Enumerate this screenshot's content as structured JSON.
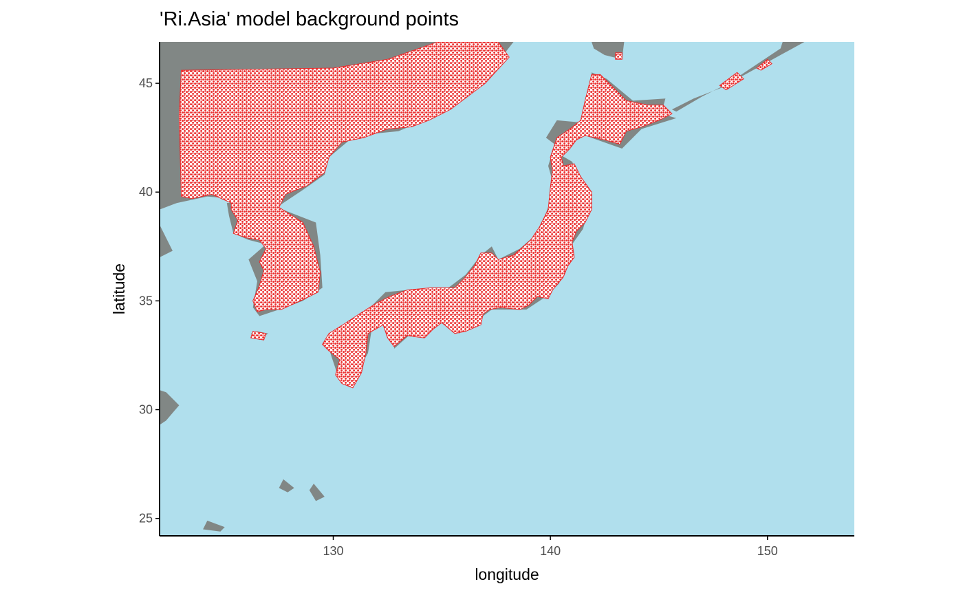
{
  "title": "'Ri.Asia' model background points",
  "colors": {
    "ocean": "#b0dfed",
    "land": "#818785",
    "background_land": "#ffffff",
    "points": "#ea2c2c",
    "axis": "#000000",
    "tick_text": "#4d4d4d"
  },
  "chart_data": {
    "type": "scatter",
    "title": "'Ri.Asia' model background points",
    "xlabel": "longitude",
    "ylabel": "latitude",
    "xlim": [
      122,
      154
    ],
    "ylim": [
      24.2,
      46.9
    ],
    "x_ticks": [
      130,
      140,
      150
    ],
    "y_ticks": [
      25,
      30,
      35,
      40,
      45
    ],
    "x_tick_labels": [
      "130",
      "140",
      "150"
    ],
    "y_tick_labels": [
      "25",
      "30",
      "35",
      "40",
      "45"
    ],
    "grid": false,
    "legend": "none",
    "series": [
      {
        "kind": "land",
        "polygons": [
          [
            [
              122,
              46.9
            ],
            [
              138.3,
              46.9
            ],
            [
              137.2,
              45.5
            ],
            [
              135.4,
              43.8
            ],
            [
              133,
              42.8
            ],
            [
              131,
              42.6
            ],
            [
              129.8,
              41.6
            ],
            [
              129.6,
              40.8
            ],
            [
              128.6,
              40.1
            ],
            [
              127.4,
              39.3
            ],
            [
              126.4,
              39.6
            ],
            [
              125.3,
              39.7
            ],
            [
              124.2,
              39.8
            ],
            [
              122.8,
              39.5
            ],
            [
              122,
              39.2
            ]
          ],
          [
            [
              122,
              38.5
            ],
            [
              122.6,
              37.3
            ],
            [
              122,
              37
            ]
          ],
          [
            [
              122.3,
              30.8
            ],
            [
              122.9,
              30.2
            ],
            [
              122.3,
              29.5
            ],
            [
              122,
              29.3
            ],
            [
              122,
              30.9
            ]
          ],
          [
            [
              141.9,
              46.9
            ],
            [
              143.4,
              46.9
            ],
            [
              143.3,
              46.1
            ],
            [
              142.5,
              46.3
            ],
            [
              142,
              46.6
            ]
          ],
          [
            [
              141.9,
              45.5
            ],
            [
              142.6,
              45.2
            ],
            [
              143.8,
              44.2
            ],
            [
              145.3,
              44.3
            ],
            [
              145.1,
              43.6
            ],
            [
              145.8,
              43.4
            ],
            [
              144.2,
              42.9
            ],
            [
              143.3,
              42
            ],
            [
              141.6,
              42.6
            ],
            [
              140.6,
              42.5
            ],
            [
              140.3,
              41.8
            ],
            [
              141,
              41.4
            ],
            [
              141.4,
              40.6
            ],
            [
              141.9,
              39.6
            ],
            [
              141.5,
              38.3
            ],
            [
              141,
              37.6
            ],
            [
              140.8,
              36.8
            ],
            [
              140.4,
              35.8
            ],
            [
              139.8,
              35.2
            ],
            [
              138.9,
              34.6
            ],
            [
              137.3,
              34.6
            ],
            [
              136.9,
              34.3
            ],
            [
              135.8,
              33.5
            ],
            [
              135.1,
              33.9
            ],
            [
              134.5,
              34.3
            ],
            [
              133.7,
              33.6
            ],
            [
              132.8,
              32.8
            ],
            [
              132.9,
              33.9
            ],
            [
              131.8,
              33.9
            ],
            [
              131.6,
              32.6
            ],
            [
              130.8,
              31.2
            ],
            [
              130.3,
              31.3
            ],
            [
              129.9,
              32.5
            ],
            [
              129.7,
              33.2
            ],
            [
              130.6,
              33.9
            ],
            [
              131.4,
              34.4
            ],
            [
              132.4,
              35.4
            ],
            [
              133.4,
              35.5
            ],
            [
              135.3,
              35.6
            ],
            [
              136.1,
              36.2
            ],
            [
              136.8,
              37.1
            ],
            [
              137.3,
              37.5
            ],
            [
              137.6,
              36.9
            ],
            [
              138.6,
              37.4
            ],
            [
              139.5,
              38.2
            ],
            [
              140,
              39.6
            ],
            [
              140.1,
              40.5
            ],
            [
              139.9,
              41.2
            ],
            [
              140.2,
              42.2
            ],
            [
              139.8,
              42.5
            ],
            [
              140.3,
              43.3
            ],
            [
              141.4,
              43.2
            ],
            [
              141.8,
              44.3
            ],
            [
              141.9,
              45.5
            ]
          ],
          [
            [
              129.2,
              38.6
            ],
            [
              129.4,
              37.1
            ],
            [
              129.5,
              35.6
            ],
            [
              128.6,
              35.0
            ],
            [
              127.8,
              34.7
            ],
            [
              126.6,
              34.3
            ],
            [
              126.3,
              34.7
            ],
            [
              126.5,
              35.9
            ],
            [
              126.1,
              36.9
            ],
            [
              126.9,
              37.6
            ],
            [
              126.1,
              37.8
            ],
            [
              125.4,
              38.1
            ],
            [
              125.2,
              38.9
            ],
            [
              125.1,
              39.5
            ],
            [
              126.4,
              39.6
            ],
            [
              127.4,
              39.3
            ]
          ],
          [
            [
              126.2,
              33.5
            ],
            [
              126.6,
              33.2
            ],
            [
              127,
              33.5
            ],
            [
              126.5,
              33.6
            ]
          ],
          [
            [
              145.6,
              43.8
            ],
            [
              146.6,
              44.3
            ],
            [
              147.9,
              44.8
            ],
            [
              149.4,
              45.8
            ],
            [
              150.6,
              46.6
            ],
            [
              150.7,
              46.9
            ],
            [
              151.7,
              46.9
            ],
            [
              150.6,
              46.3
            ],
            [
              148.6,
              45.2
            ],
            [
              147,
              44.4
            ],
            [
              145.8,
              43.7
            ]
          ],
          [
            [
              129.1,
              26.6
            ],
            [
              129.6,
              26.0
            ],
            [
              129.2,
              25.8
            ],
            [
              128.9,
              26.3
            ]
          ],
          [
            [
              127.7,
              26.8
            ],
            [
              128.2,
              26.4
            ],
            [
              127.9,
              26.2
            ],
            [
              127.5,
              26.4
            ]
          ],
          [
            [
              124.2,
              24.9
            ],
            [
              125.0,
              24.6
            ],
            [
              124.8,
              24.4
            ],
            [
              124.0,
              24.5
            ]
          ]
        ]
      },
      {
        "kind": "sampled_land",
        "name": "background points",
        "polygons": [
          [
            [
              123,
              45.6
            ],
            [
              130,
              45.7
            ],
            [
              132.5,
              46.1
            ],
            [
              134.8,
              46.9
            ],
            [
              137.6,
              46.9
            ],
            [
              138.1,
              46.2
            ],
            [
              137,
              45
            ],
            [
              135.4,
              43.8
            ],
            [
              134.4,
              43.3
            ],
            [
              133.6,
              43.0
            ],
            [
              132.5,
              42.9
            ],
            [
              131.4,
              42.5
            ],
            [
              130.4,
              42.3
            ],
            [
              129.8,
              41.6
            ],
            [
              129.6,
              40.9
            ],
            [
              128.8,
              40.3
            ],
            [
              127.8,
              39.9
            ],
            [
              127.5,
              39.3
            ],
            [
              128.6,
              38.6
            ],
            [
              129.1,
              37.5
            ],
            [
              129.4,
              36.3
            ],
            [
              129.3,
              35.4
            ],
            [
              128.7,
              35.1
            ],
            [
              127.6,
              34.6
            ],
            [
              126.9,
              34.6
            ],
            [
              126.5,
              34.5
            ],
            [
              126.3,
              35.0
            ],
            [
              126.6,
              35.7
            ],
            [
              126.8,
              36.4
            ],
            [
              126.6,
              36.8
            ],
            [
              126.9,
              37.4
            ],
            [
              126.6,
              37.8
            ],
            [
              126,
              37.9
            ],
            [
              125.4,
              38.1
            ],
            [
              125.6,
              38.7
            ],
            [
              125.3,
              39.2
            ],
            [
              125.3,
              39.5
            ],
            [
              124.4,
              39.9
            ],
            [
              123.5,
              39.7
            ],
            [
              123,
              39.8
            ],
            [
              122.9,
              43.5
            ]
          ],
          [
            [
              142.3,
              45.4
            ],
            [
              143.5,
              44.2
            ],
            [
              144.5,
              44.0
            ],
            [
              145.2,
              44.0
            ],
            [
              145.6,
              43.6
            ],
            [
              145.0,
              43.3
            ],
            [
              144.2,
              43.0
            ],
            [
              143.5,
              42.8
            ],
            [
              143.2,
              42.2
            ],
            [
              142.5,
              42.4
            ],
            [
              141.6,
              42.6
            ],
            [
              141.2,
              42.4
            ],
            [
              140.9,
              42.0
            ],
            [
              140.5,
              41.6
            ],
            [
              140.6,
              41.2
            ],
            [
              141.1,
              41.3
            ],
            [
              141.4,
              40.7
            ],
            [
              141.9,
              40.0
            ],
            [
              141.9,
              39.2
            ],
            [
              141.6,
              38.6
            ],
            [
              141.2,
              38.2
            ],
            [
              141.0,
              37.7
            ],
            [
              141.1,
              37.0
            ],
            [
              140.8,
              36.6
            ],
            [
              140.6,
              36.1
            ],
            [
              140.1,
              35.5
            ],
            [
              139.9,
              35.1
            ],
            [
              139.4,
              35.2
            ],
            [
              139.0,
              34.8
            ],
            [
              138.6,
              34.6
            ],
            [
              137.7,
              34.7
            ],
            [
              137.2,
              34.6
            ],
            [
              136.9,
              34.4
            ],
            [
              136.8,
              33.9
            ],
            [
              136.1,
              33.6
            ],
            [
              135.6,
              33.5
            ],
            [
              135.0,
              34.0
            ],
            [
              134.6,
              33.7
            ],
            [
              134.2,
              33.3
            ],
            [
              133.4,
              33.4
            ],
            [
              132.8,
              32.9
            ],
            [
              132.5,
              33.3
            ],
            [
              132.3,
              33.9
            ],
            [
              131.6,
              33.5
            ],
            [
              131.5,
              32.6
            ],
            [
              131.3,
              31.7
            ],
            [
              130.9,
              31.0
            ],
            [
              130.4,
              31.2
            ],
            [
              130.1,
              31.6
            ],
            [
              130.3,
              32.3
            ],
            [
              129.8,
              32.7
            ],
            [
              129.5,
              33.0
            ],
            [
              129.8,
              33.5
            ],
            [
              130.6,
              34.0
            ],
            [
              131.2,
              34.4
            ],
            [
              132.0,
              34.9
            ],
            [
              132.6,
              35.2
            ],
            [
              133.4,
              35.5
            ],
            [
              134.5,
              35.6
            ],
            [
              135.6,
              35.6
            ],
            [
              136.0,
              36.0
            ],
            [
              136.5,
              36.6
            ],
            [
              136.8,
              37.2
            ],
            [
              137.3,
              37.2
            ],
            [
              137.6,
              36.9
            ],
            [
              138.3,
              37.1
            ],
            [
              139.1,
              37.8
            ],
            [
              139.5,
              38.4
            ],
            [
              139.9,
              39.2
            ],
            [
              140.0,
              40.2
            ],
            [
              140.1,
              41.0
            ],
            [
              140.0,
              41.6
            ],
            [
              140.3,
              42.5
            ],
            [
              140.9,
              42.9
            ],
            [
              141.4,
              43.3
            ],
            [
              141.6,
              44.2
            ],
            [
              141.9,
              45.4
            ]
          ],
          [
            [
              126.3,
              33.6
            ],
            [
              126.9,
              33.5
            ],
            [
              126.8,
              33.2
            ],
            [
              126.2,
              33.3
            ]
          ],
          [
            [
              147.8,
              44.9
            ],
            [
              148.6,
              45.5
            ],
            [
              148.9,
              45.2
            ],
            [
              148.1,
              44.7
            ]
          ],
          [
            [
              149.5,
              45.7
            ],
            [
              150.0,
              46.1
            ],
            [
              150.2,
              45.9
            ],
            [
              149.7,
              45.6
            ]
          ],
          [
            [
              143.0,
              46.4
            ],
            [
              143.3,
              46.4
            ],
            [
              143.3,
              46.1
            ],
            [
              143.0,
              46.1
            ]
          ]
        ]
      }
    ]
  }
}
